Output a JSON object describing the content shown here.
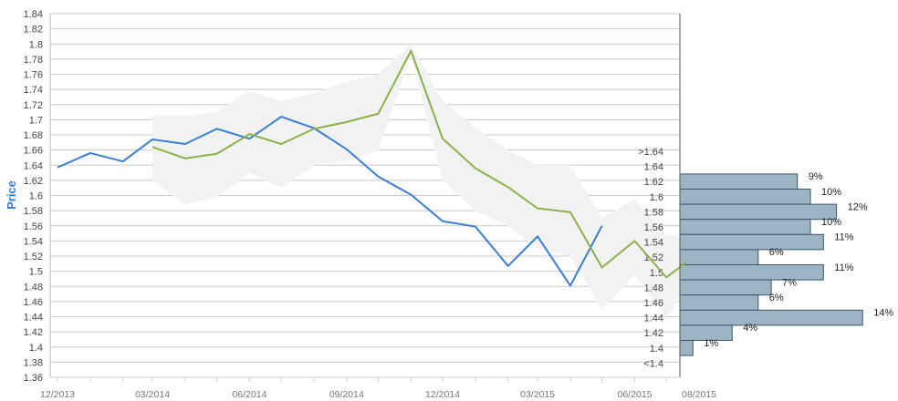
{
  "chart_data": {
    "type": "line",
    "ylabel": "Price",
    "ylim": [
      1.36,
      1.84
    ],
    "y_ticks": [
      "1.36",
      "1.38",
      "1.4",
      "1.42",
      "1.44",
      "1.46",
      "1.48",
      "1.5",
      "1.52",
      "1.54",
      "1.56",
      "1.58",
      "1.6",
      "1.62",
      "1.64",
      "1.66",
      "1.68",
      "1.7",
      "1.72",
      "1.74",
      "1.76",
      "1.78",
      "1.8",
      "1.82",
      "1.84"
    ],
    "x_tick_labels": [
      "12/2013",
      "03/2014",
      "06/2014",
      "09/2014",
      "12/2014",
      "03/2015",
      "06/2015",
      "08/2015"
    ],
    "grid": true,
    "series": [
      {
        "color": "#3a7fd5",
        "x": [
          "2013-12",
          "2014-01",
          "2014-02",
          "2014-03",
          "2014-04",
          "2014-05",
          "2014-06",
          "2014-07",
          "2014-08",
          "2014-09",
          "2014-10",
          "2014-11",
          "2014-12",
          "2015-01",
          "2015-02",
          "2015-03",
          "2015-04",
          "2015-05"
        ],
        "values": [
          1.637,
          1.656,
          1.645,
          1.674,
          1.668,
          1.688,
          1.675,
          1.704,
          1.689,
          1.661,
          1.625,
          1.601,
          1.566,
          1.559,
          1.507,
          1.546,
          1.481,
          1.56
        ]
      },
      {
        "color": "#8db04a",
        "x": [
          "2014-03",
          "2014-04",
          "2014-05",
          "2014-06",
          "2014-07",
          "2014-08",
          "2014-09",
          "2014-10",
          "2014-11",
          "2014-12",
          "2015-01",
          "2015-02",
          "2015-03",
          "2015-04",
          "2015-05",
          "2015-06",
          "2015-07",
          "2015-07-20"
        ],
        "values": [
          1.664,
          1.649,
          1.655,
          1.681,
          1.668,
          1.688,
          1.697,
          1.708,
          1.791,
          1.675,
          1.636,
          1.611,
          1.583,
          1.578,
          1.505,
          1.54,
          1.492,
          1.512
        ]
      }
    ],
    "band": {
      "color": "#f2f2f2",
      "x": [
        "2014-03",
        "2014-04",
        "2014-05",
        "2014-06",
        "2014-07",
        "2014-08",
        "2014-09",
        "2014-10",
        "2014-11",
        "2014-12",
        "2015-01",
        "2015-02",
        "2015-03",
        "2015-04",
        "2015-05",
        "2015-06",
        "2015-07",
        "2015-07-20"
      ],
      "upper": [
        1.705,
        1.705,
        1.71,
        1.738,
        1.725,
        1.735,
        1.75,
        1.76,
        1.8,
        1.725,
        1.69,
        1.66,
        1.64,
        1.64,
        1.57,
        1.595,
        1.548,
        1.546
      ],
      "lower": [
        1.62,
        1.588,
        1.598,
        1.63,
        1.61,
        1.64,
        1.645,
        1.66,
        1.785,
        1.62,
        1.58,
        1.56,
        1.53,
        1.52,
        1.45,
        1.495,
        1.438,
        1.478
      ]
    },
    "histogram": {
      "color": "#9db4c5",
      "bins": [
        {
          "label": ">1.64",
          "value": 0,
          "percent": ""
        },
        {
          "label": "1.64",
          "value": 0,
          "percent": ""
        },
        {
          "label": "1.62",
          "value": 9,
          "percent": "9%"
        },
        {
          "label": "1.6",
          "value": 10,
          "percent": "10%"
        },
        {
          "label": "1.58",
          "value": 12,
          "percent": "12%"
        },
        {
          "label": "1.56",
          "value": 10,
          "percent": "10%"
        },
        {
          "label": "1.54",
          "value": 11,
          "percent": "11%"
        },
        {
          "label": "1.52",
          "value": 6,
          "percent": "6%"
        },
        {
          "label": "1.5",
          "value": 11,
          "percent": "11%"
        },
        {
          "label": "1.48",
          "value": 7,
          "percent": "7%"
        },
        {
          "label": "1.46",
          "value": 6,
          "percent": "6%"
        },
        {
          "label": "1.44",
          "value": 14,
          "percent": "14%"
        },
        {
          "label": "1.42",
          "value": 4,
          "percent": "4%"
        },
        {
          "label": "1.4",
          "value": 1,
          "percent": "1%"
        },
        {
          "label": "<1.4",
          "value": 0,
          "percent": ""
        }
      ]
    }
  }
}
